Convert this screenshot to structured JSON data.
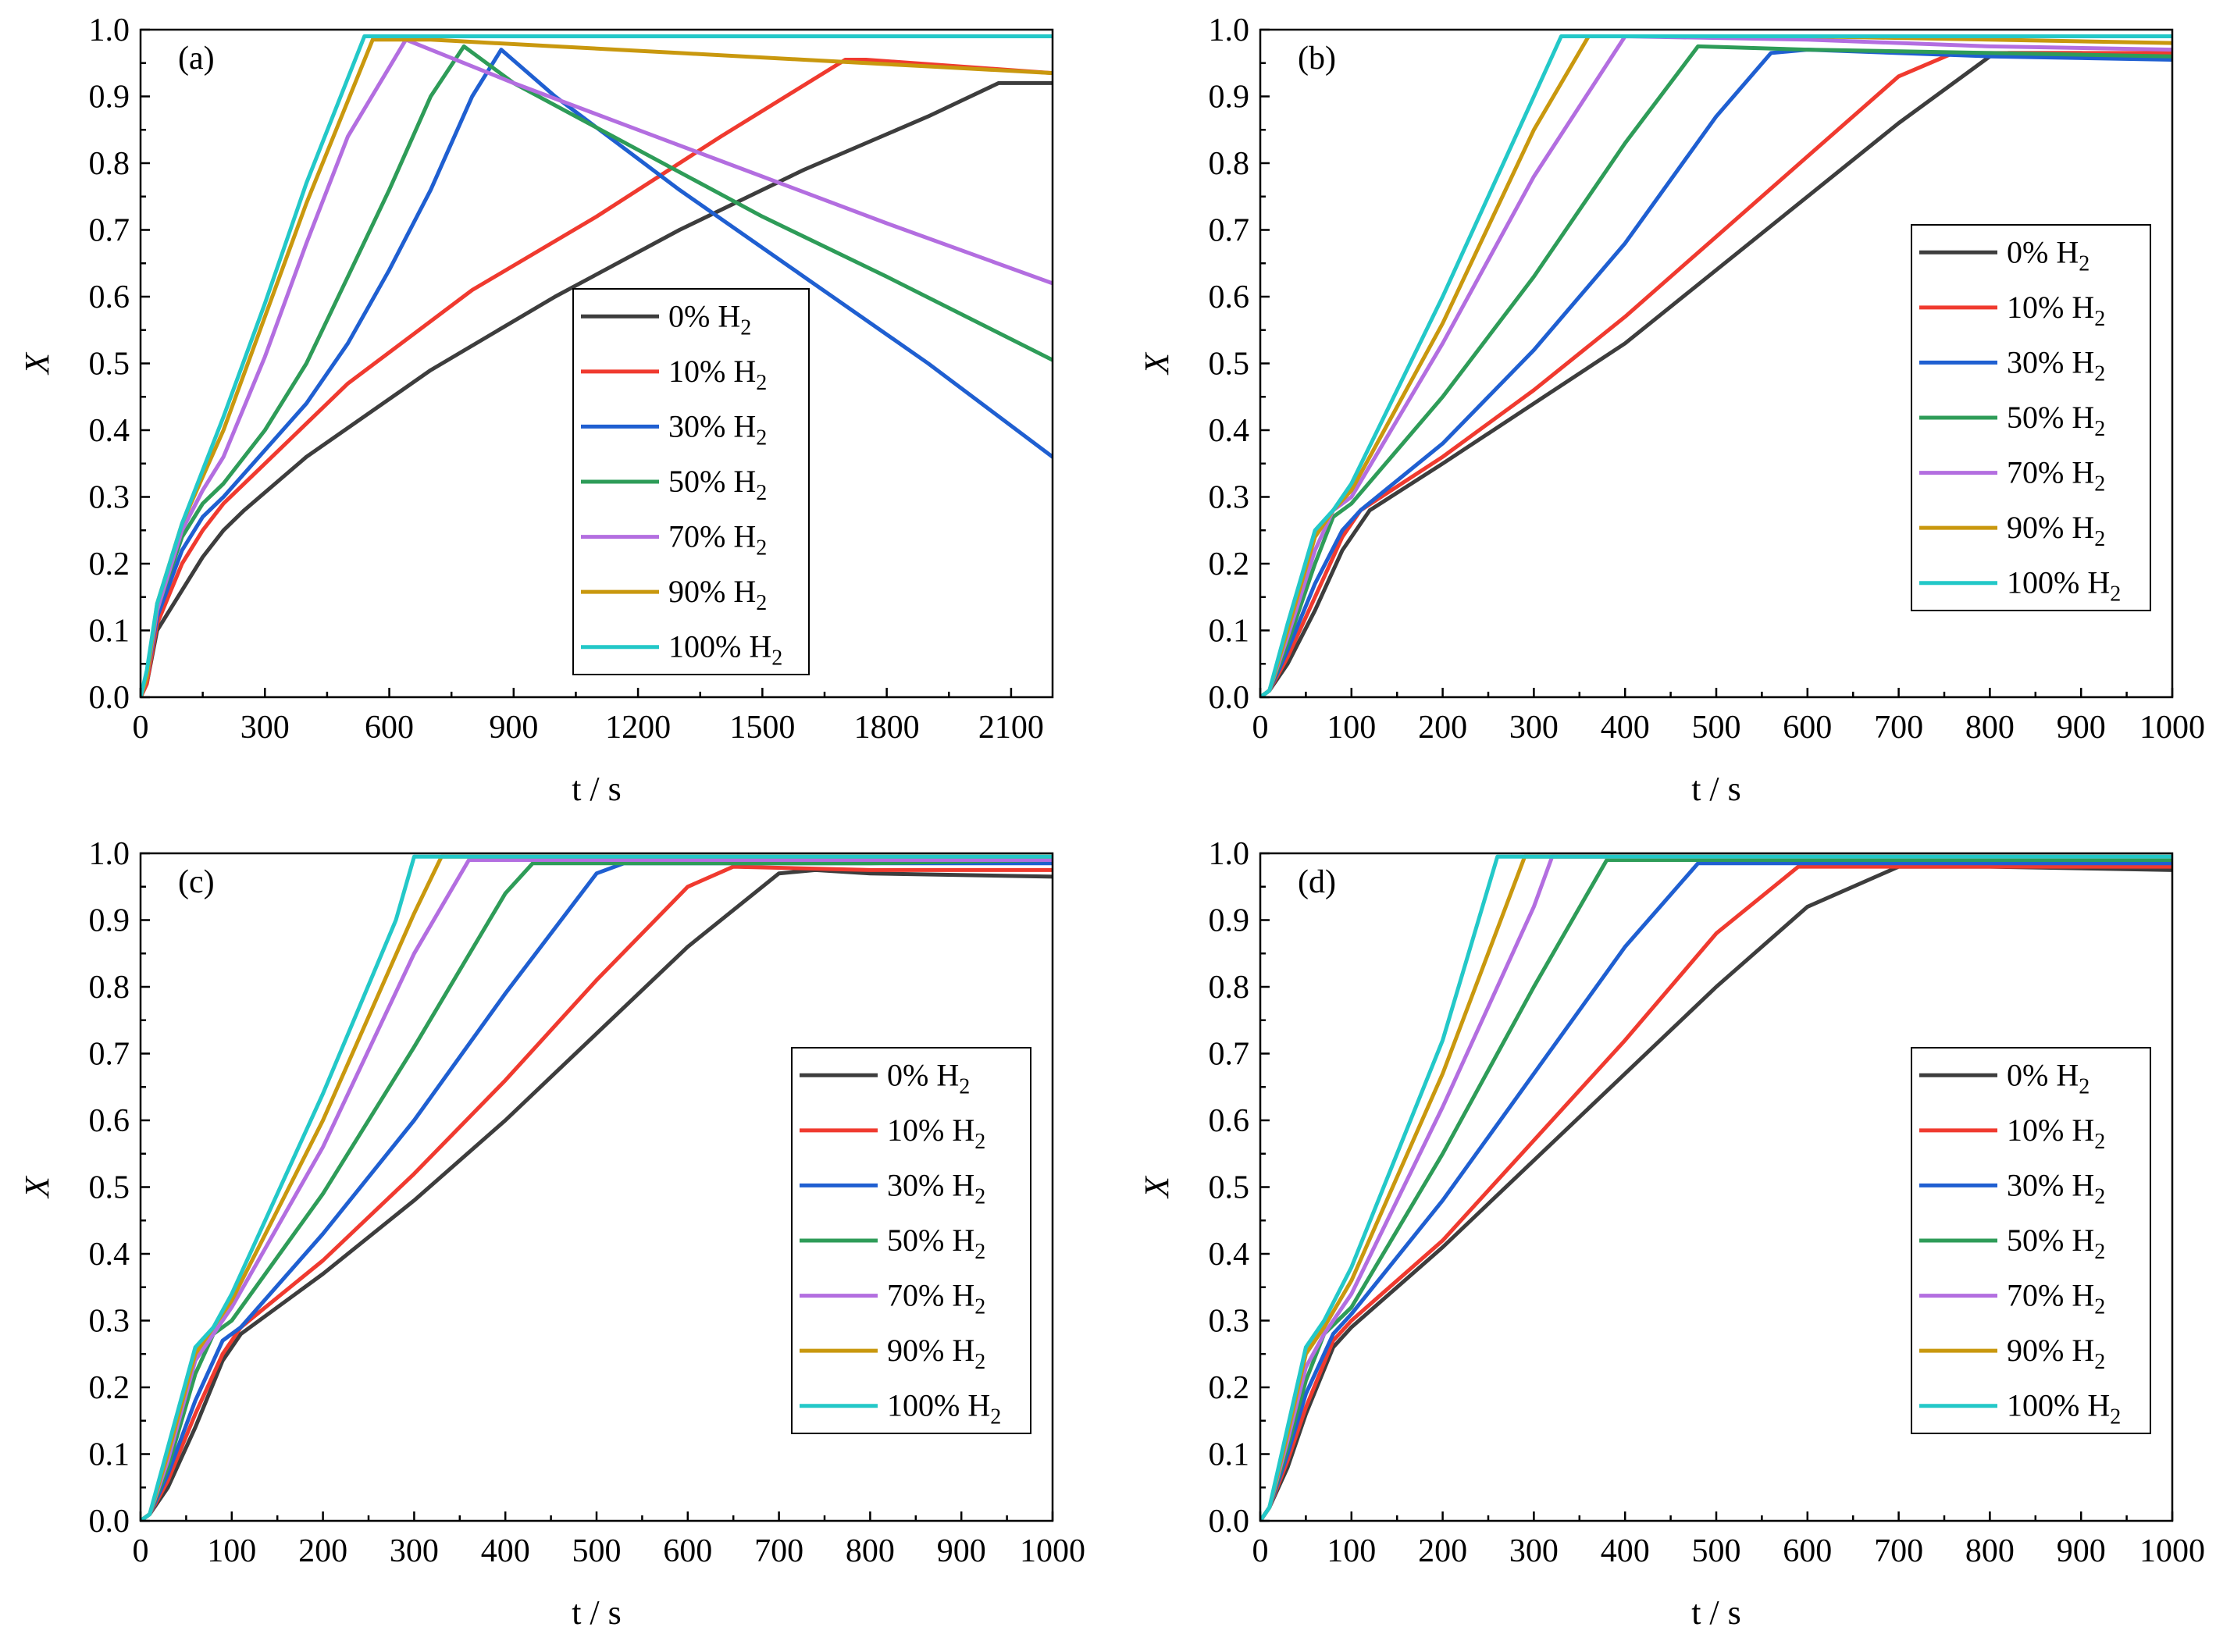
{
  "legend_labels": [
    "0% H",
    "10% H",
    "30% H",
    "50% H",
    "70% H",
    "90% H",
    "100% H"
  ],
  "legend_sub": "2",
  "chart_data": [
    {
      "type": "line",
      "panel": "(a)",
      "xlabel": "t / s",
      "ylabel": "X",
      "xlim": [
        0,
        2200
      ],
      "ylim": [
        0.0,
        1.0
      ],
      "xticks": [
        "0",
        "300",
        "600",
        "900",
        "1200",
        "1500",
        "1800",
        "2100"
      ],
      "yticks": [
        "0.0",
        "0.1",
        "0.2",
        "0.3",
        "0.4",
        "0.5",
        "0.6",
        "0.7",
        "0.8",
        "0.9",
        "1.0"
      ],
      "legend_position": "center",
      "series": [
        {
          "name": "0% H2",
          "color": "#3d3d3d",
          "x": [
            0,
            15,
            40,
            100,
            150,
            200,
            250,
            400,
            700,
            1000,
            1300,
            1600,
            1900,
            2070,
            2100,
            2200
          ],
          "y": [
            0,
            0.02,
            0.1,
            0.16,
            0.21,
            0.25,
            0.28,
            0.36,
            0.49,
            0.6,
            0.7,
            0.79,
            0.87,
            0.92,
            0.92,
            0.92
          ]
        },
        {
          "name": "10% H2",
          "color": "#f03a2f",
          "x": [
            0,
            15,
            40,
            100,
            150,
            200,
            300,
            500,
            800,
            1100,
            1400,
            1700,
            1750,
            2200
          ],
          "y": [
            0,
            0.02,
            0.11,
            0.2,
            0.25,
            0.29,
            0.35,
            0.47,
            0.61,
            0.72,
            0.84,
            0.955,
            0.955,
            0.935
          ]
        },
        {
          "name": "30% H2",
          "color": "#1f5fd1",
          "x": [
            0,
            15,
            40,
            100,
            150,
            200,
            300,
            400,
            500,
            600,
            700,
            800,
            870,
            1000,
            1300,
            1600,
            1900,
            2200
          ],
          "y": [
            0,
            0.03,
            0.12,
            0.22,
            0.27,
            0.3,
            0.37,
            0.44,
            0.53,
            0.64,
            0.76,
            0.9,
            0.97,
            0.9,
            0.76,
            0.63,
            0.5,
            0.36
          ]
        },
        {
          "name": "50% H2",
          "color": "#2e9c58",
          "x": [
            0,
            15,
            40,
            100,
            150,
            200,
            300,
            400,
            500,
            600,
            700,
            780,
            900,
            1200,
            1500,
            1800,
            2200
          ],
          "y": [
            0,
            0.03,
            0.13,
            0.24,
            0.29,
            0.32,
            0.4,
            0.5,
            0.63,
            0.76,
            0.9,
            0.975,
            0.92,
            0.82,
            0.72,
            0.63,
            0.505
          ]
        },
        {
          "name": "70% H2",
          "color": "#b36ee0",
          "x": [
            0,
            15,
            40,
            100,
            150,
            200,
            300,
            400,
            500,
            640,
            900,
            1200,
            1500,
            1800,
            2200
          ],
          "y": [
            0,
            0.03,
            0.13,
            0.25,
            0.31,
            0.36,
            0.51,
            0.68,
            0.84,
            0.985,
            0.92,
            0.85,
            0.78,
            0.71,
            0.62
          ]
        },
        {
          "name": "90% H2",
          "color": "#c9980e",
          "x": [
            0,
            15,
            40,
            100,
            150,
            200,
            300,
            400,
            560,
            700,
            1000,
            1300,
            1600,
            1900,
            2200
          ],
          "y": [
            0,
            0.03,
            0.14,
            0.26,
            0.33,
            0.4,
            0.57,
            0.74,
            0.985,
            0.985,
            0.975,
            0.965,
            0.955,
            0.945,
            0.935
          ]
        },
        {
          "name": "100% H2",
          "color": "#23c8c8",
          "x": [
            0,
            15,
            40,
            100,
            150,
            200,
            300,
            400,
            540,
            800,
            1200,
            1600,
            2000,
            2200
          ],
          "y": [
            0,
            0.04,
            0.14,
            0.26,
            0.34,
            0.42,
            0.59,
            0.77,
            0.99,
            0.99,
            0.99,
            0.99,
            0.99,
            0.99
          ]
        }
      ]
    },
    {
      "type": "line",
      "panel": "(b)",
      "xlabel": "t / s",
      "ylabel": "X",
      "xlim": [
        0,
        1000
      ],
      "ylim": [
        0.0,
        1.0
      ],
      "xticks": [
        "0",
        "100",
        "200",
        "300",
        "400",
        "500",
        "600",
        "700",
        "800",
        "900",
        "1000"
      ],
      "yticks": [
        "0.0",
        "0.1",
        "0.2",
        "0.3",
        "0.4",
        "0.5",
        "0.6",
        "0.7",
        "0.8",
        "0.9",
        "1.0"
      ],
      "legend_position": "center-right",
      "series": [
        {
          "name": "0% H2",
          "color": "#3d3d3d",
          "x": [
            0,
            10,
            30,
            60,
            90,
            120,
            200,
            300,
            400,
            500,
            600,
            700,
            800,
            820,
            900,
            1000
          ],
          "y": [
            0,
            0.01,
            0.05,
            0.13,
            0.22,
            0.28,
            0.35,
            0.44,
            0.53,
            0.64,
            0.75,
            0.86,
            0.96,
            0.965,
            0.965,
            0.96
          ]
        },
        {
          "name": "10% H2",
          "color": "#f03a2f",
          "x": [
            0,
            10,
            30,
            60,
            90,
            110,
            200,
            300,
            400,
            500,
            600,
            700,
            760,
            800,
            1000
          ],
          "y": [
            0,
            0.01,
            0.06,
            0.15,
            0.24,
            0.28,
            0.36,
            0.46,
            0.57,
            0.69,
            0.81,
            0.93,
            0.965,
            0.965,
            0.965
          ]
        },
        {
          "name": "30% H2",
          "color": "#1f5fd1",
          "x": [
            0,
            10,
            30,
            60,
            90,
            110,
            200,
            300,
            400,
            500,
            560,
            600,
            800,
            1000
          ],
          "y": [
            0,
            0.01,
            0.07,
            0.17,
            0.25,
            0.28,
            0.38,
            0.52,
            0.68,
            0.87,
            0.965,
            0.97,
            0.96,
            0.955
          ]
        },
        {
          "name": "50% H2",
          "color": "#2e9c58",
          "x": [
            0,
            10,
            30,
            60,
            80,
            100,
            200,
            300,
            400,
            480,
            600,
            800,
            1000
          ],
          "y": [
            0,
            0.01,
            0.08,
            0.2,
            0.27,
            0.29,
            0.45,
            0.63,
            0.83,
            0.975,
            0.97,
            0.965,
            0.96
          ]
        },
        {
          "name": "70% H2",
          "color": "#b36ee0",
          "x": [
            0,
            10,
            30,
            60,
            80,
            100,
            200,
            300,
            400,
            600,
            800,
            1000
          ],
          "y": [
            0,
            0.01,
            0.09,
            0.22,
            0.28,
            0.3,
            0.53,
            0.78,
            0.99,
            0.985,
            0.975,
            0.97
          ]
        },
        {
          "name": "90% H2",
          "color": "#c9980e",
          "x": [
            0,
            10,
            30,
            60,
            80,
            100,
            200,
            300,
            360,
            600,
            800,
            1000
          ],
          "y": [
            0,
            0.01,
            0.1,
            0.24,
            0.28,
            0.31,
            0.56,
            0.85,
            0.99,
            0.99,
            0.985,
            0.98
          ]
        },
        {
          "name": "100% H2",
          "color": "#23c8c8",
          "x": [
            0,
            10,
            30,
            60,
            80,
            100,
            200,
            300,
            330,
            600,
            800,
            1000
          ],
          "y": [
            0,
            0.01,
            0.11,
            0.25,
            0.28,
            0.32,
            0.6,
            0.9,
            0.99,
            0.99,
            0.99,
            0.99
          ]
        }
      ]
    },
    {
      "type": "line",
      "panel": "(c)",
      "xlabel": "t / s",
      "ylabel": "X",
      "xlim": [
        0,
        1000
      ],
      "ylim": [
        0.0,
        1.0
      ],
      "xticks": [
        "0",
        "100",
        "200",
        "300",
        "400",
        "500",
        "600",
        "700",
        "800",
        "900",
        "1000"
      ],
      "yticks": [
        "0.0",
        "0.1",
        "0.2",
        "0.3",
        "0.4",
        "0.5",
        "0.6",
        "0.7",
        "0.8",
        "0.9",
        "1.0"
      ],
      "legend_position": "center-right",
      "series": [
        {
          "name": "0% H2",
          "color": "#3d3d3d",
          "x": [
            0,
            10,
            30,
            60,
            90,
            110,
            200,
            300,
            400,
            500,
            600,
            700,
            740,
            800,
            1000
          ],
          "y": [
            0,
            0.01,
            0.05,
            0.14,
            0.24,
            0.28,
            0.37,
            0.48,
            0.6,
            0.73,
            0.86,
            0.97,
            0.975,
            0.97,
            0.965
          ]
        },
        {
          "name": "10% H2",
          "color": "#f03a2f",
          "x": [
            0,
            10,
            30,
            60,
            90,
            110,
            200,
            300,
            400,
            500,
            600,
            650,
            800,
            1000
          ],
          "y": [
            0,
            0.01,
            0.06,
            0.16,
            0.25,
            0.29,
            0.39,
            0.52,
            0.66,
            0.81,
            0.95,
            0.98,
            0.975,
            0.975
          ]
        },
        {
          "name": "30% H2",
          "color": "#1f5fd1",
          "x": [
            0,
            10,
            30,
            60,
            90,
            110,
            200,
            300,
            400,
            500,
            530,
            800,
            1000
          ],
          "y": [
            0,
            0.01,
            0.07,
            0.18,
            0.27,
            0.29,
            0.43,
            0.6,
            0.79,
            0.97,
            0.985,
            0.985,
            0.985
          ]
        },
        {
          "name": "50% H2",
          "color": "#2e9c58",
          "x": [
            0,
            10,
            30,
            60,
            80,
            100,
            200,
            300,
            400,
            430,
            800,
            1000
          ],
          "y": [
            0,
            0.01,
            0.08,
            0.22,
            0.28,
            0.3,
            0.49,
            0.71,
            0.94,
            0.985,
            0.985,
            0.99
          ]
        },
        {
          "name": "70% H2",
          "color": "#b36ee0",
          "x": [
            0,
            10,
            30,
            60,
            80,
            100,
            200,
            300,
            360,
            800,
            1000
          ],
          "y": [
            0,
            0.01,
            0.09,
            0.24,
            0.28,
            0.32,
            0.56,
            0.85,
            0.99,
            0.99,
            0.99
          ]
        },
        {
          "name": "90% H2",
          "color": "#c9980e",
          "x": [
            0,
            10,
            30,
            60,
            80,
            100,
            200,
            300,
            330,
            800,
            1000
          ],
          "y": [
            0,
            0.01,
            0.1,
            0.25,
            0.29,
            0.33,
            0.6,
            0.91,
            0.995,
            0.995,
            0.995
          ]
        },
        {
          "name": "100% H2",
          "color": "#23c8c8",
          "x": [
            0,
            10,
            30,
            60,
            80,
            100,
            200,
            280,
            300,
            800,
            1000
          ],
          "y": [
            0,
            0.01,
            0.11,
            0.26,
            0.29,
            0.34,
            0.64,
            0.9,
            0.995,
            0.995,
            0.995
          ]
        }
      ]
    },
    {
      "type": "line",
      "panel": "(d)",
      "xlabel": "t / s",
      "ylabel": "X",
      "xlim": [
        0,
        1000
      ],
      "ylim": [
        0.0,
        1.0
      ],
      "xticks": [
        "0",
        "100",
        "200",
        "300",
        "400",
        "500",
        "600",
        "700",
        "800",
        "900",
        "1000"
      ],
      "yticks": [
        "0.0",
        "0.1",
        "0.2",
        "0.3",
        "0.4",
        "0.5",
        "0.6",
        "0.7",
        "0.8",
        "0.9",
        "1.0"
      ],
      "legend_position": "center-right",
      "series": [
        {
          "name": "0% H2",
          "color": "#3d3d3d",
          "x": [
            0,
            10,
            30,
            50,
            80,
            100,
            200,
            300,
            400,
            500,
            600,
            700,
            800,
            1000
          ],
          "y": [
            0,
            0.02,
            0.08,
            0.16,
            0.26,
            0.29,
            0.41,
            0.54,
            0.67,
            0.8,
            0.92,
            0.98,
            0.98,
            0.975
          ]
        },
        {
          "name": "10% H2",
          "color": "#f03a2f",
          "x": [
            0,
            10,
            30,
            50,
            80,
            100,
            200,
            300,
            400,
            500,
            590,
            800,
            1000
          ],
          "y": [
            0,
            0.02,
            0.09,
            0.17,
            0.27,
            0.3,
            0.42,
            0.57,
            0.72,
            0.88,
            0.98,
            0.98,
            0.98
          ]
        },
        {
          "name": "30% H2",
          "color": "#1f5fd1",
          "x": [
            0,
            10,
            30,
            50,
            80,
            100,
            200,
            300,
            400,
            480,
            800,
            1000
          ],
          "y": [
            0,
            0.02,
            0.1,
            0.19,
            0.28,
            0.31,
            0.48,
            0.67,
            0.86,
            0.985,
            0.985,
            0.985
          ]
        },
        {
          "name": "50% H2",
          "color": "#2e9c58",
          "x": [
            0,
            10,
            30,
            50,
            70,
            100,
            200,
            300,
            380,
            800,
            1000
          ],
          "y": [
            0,
            0.02,
            0.11,
            0.21,
            0.28,
            0.32,
            0.55,
            0.8,
            0.99,
            0.99,
            0.99
          ]
        },
        {
          "name": "70% H2",
          "color": "#b36ee0",
          "x": [
            0,
            10,
            30,
            50,
            70,
            100,
            200,
            300,
            320,
            800,
            1000
          ],
          "y": [
            0,
            0.02,
            0.12,
            0.23,
            0.28,
            0.34,
            0.62,
            0.92,
            0.995,
            0.995,
            0.995
          ]
        },
        {
          "name": "90% H2",
          "color": "#c9980e",
          "x": [
            0,
            10,
            30,
            50,
            70,
            100,
            200,
            290,
            800,
            1000
          ],
          "y": [
            0,
            0.02,
            0.13,
            0.25,
            0.29,
            0.36,
            0.67,
            0.995,
            0.995,
            0.995
          ]
        },
        {
          "name": "100% H2",
          "color": "#23c8c8",
          "x": [
            0,
            10,
            30,
            50,
            70,
            100,
            200,
            260,
            800,
            1000
          ],
          "y": [
            0,
            0.02,
            0.14,
            0.26,
            0.3,
            0.38,
            0.72,
            0.995,
            0.995,
            0.995
          ]
        }
      ]
    }
  ]
}
